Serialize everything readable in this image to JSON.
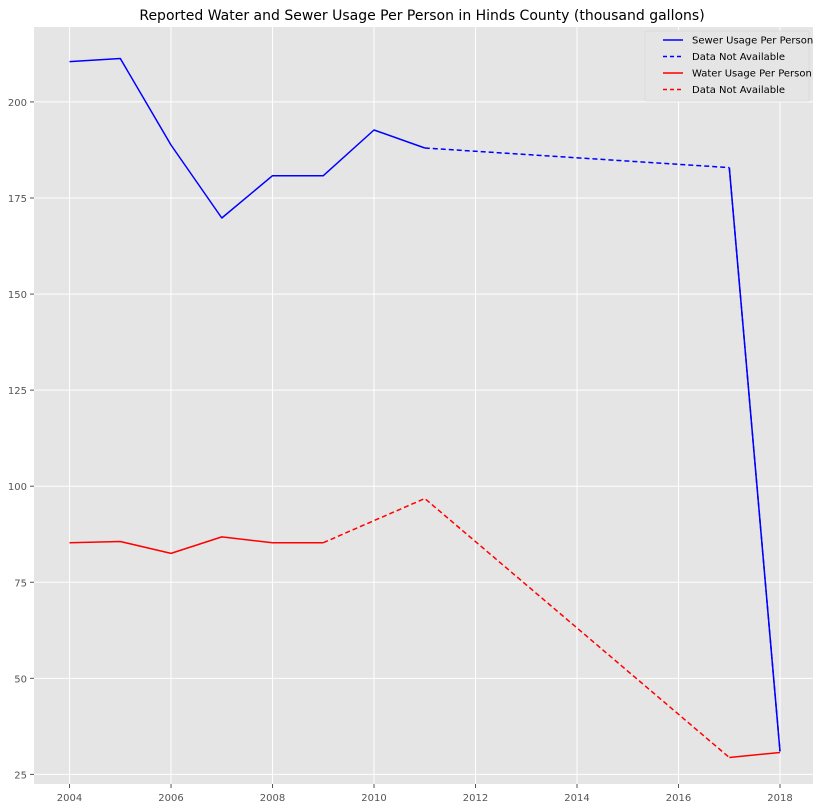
{
  "chart_data": {
    "type": "line",
    "title": "Reported Water and Sewer Usage Per Person in Hinds County (thousand gallons)",
    "xlabel": "",
    "ylabel": "",
    "xlim": [
      2003.3,
      2018.65
    ],
    "ylim": [
      22.5,
      219.5
    ],
    "xticks": [
      2004,
      2006,
      2008,
      2010,
      2012,
      2014,
      2016,
      2018
    ],
    "yticks": [
      25,
      50,
      75,
      100,
      125,
      150,
      175,
      200
    ],
    "grid": true,
    "legend_position": "top-right",
    "series": [
      {
        "name": "Sewer Usage Per Person",
        "color": "#0000ff",
        "style": "solid",
        "segments": [
          {
            "x": [
              2004,
              2005,
              2006,
              2007,
              2008,
              2009,
              2010,
              2011
            ],
            "y": [
              210.5,
              211.3,
              188.8,
              169.8,
              180.8,
              180.8,
              192.7,
              188.0
            ]
          },
          {
            "x": [
              2017,
              2018
            ],
            "y": [
              182.9,
              31.0
            ]
          }
        ]
      },
      {
        "name": "Data Not Available",
        "color": "#0000ff",
        "style": "dashed",
        "segments": [
          {
            "x": [
              2011,
              2017
            ],
            "y": [
              188.0,
              182.9
            ]
          },
          {
            "x": [
              2017,
              2018
            ],
            "y": [
              182.9,
              31.0
            ]
          }
        ]
      },
      {
        "name": "Water Usage Per Person",
        "color": "#ff0000",
        "style": "solid",
        "segments": [
          {
            "x": [
              2004,
              2005,
              2006,
              2007,
              2008,
              2009
            ],
            "y": [
              85.3,
              85.6,
              82.5,
              86.8,
              85.3,
              85.3
            ]
          },
          {
            "x": [
              2017,
              2018
            ],
            "y": [
              29.4,
              30.7
            ]
          }
        ]
      },
      {
        "name": "Data Not Available",
        "color": "#ff0000",
        "style": "dashed",
        "segments": [
          {
            "x": [
              2009,
              2011,
              2017
            ],
            "y": [
              85.3,
              96.8,
              29.4
            ]
          }
        ]
      }
    ]
  }
}
